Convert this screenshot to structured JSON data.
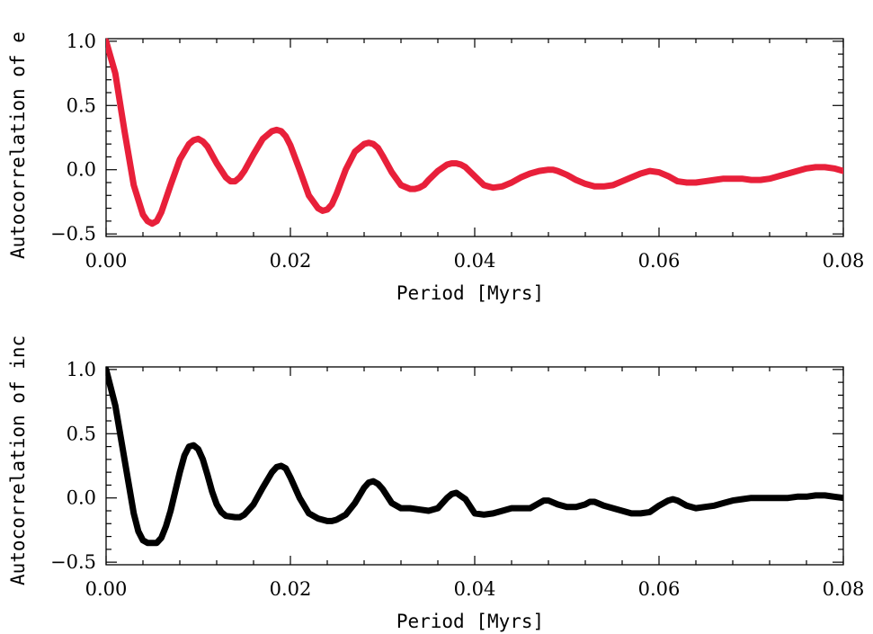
{
  "colors": {
    "series_e": "#e8203a",
    "series_inc": "#000000",
    "axes": "#000000",
    "background": "#ffffff"
  },
  "chart_data": [
    {
      "type": "line",
      "title": "",
      "xlabel": "Period [Myrs]",
      "ylabel": "Autocorrelation of e",
      "xlim": [
        0.0,
        0.08
      ],
      "ylim": [
        -0.52,
        1.02
      ],
      "xticks": [
        0.0,
        0.02,
        0.04,
        0.06,
        0.08
      ],
      "xtick_labels": [
        "0.00",
        "0.02",
        "0.04",
        "0.06",
        "0.08"
      ],
      "yticks": [
        -0.5,
        0.0,
        0.5,
        1.0
      ],
      "ytick_labels": [
        "−0.5",
        "0.0",
        "0.5",
        "1.0"
      ],
      "grid": false,
      "series": [
        {
          "color": "#e8203a",
          "x": [
            0.0,
            0.001,
            0.002,
            0.003,
            0.004,
            0.0045,
            0.005,
            0.0055,
            0.006,
            0.007,
            0.008,
            0.009,
            0.0095,
            0.01,
            0.0105,
            0.011,
            0.012,
            0.013,
            0.0135,
            0.014,
            0.0145,
            0.015,
            0.016,
            0.017,
            0.018,
            0.0185,
            0.019,
            0.0195,
            0.02,
            0.021,
            0.022,
            0.023,
            0.0235,
            0.024,
            0.0245,
            0.025,
            0.026,
            0.027,
            0.028,
            0.0285,
            0.029,
            0.0295,
            0.03,
            0.031,
            0.032,
            0.033,
            0.0335,
            0.034,
            0.0345,
            0.035,
            0.036,
            0.037,
            0.0375,
            0.038,
            0.0385,
            0.039,
            0.04,
            0.041,
            0.042,
            0.043,
            0.044,
            0.045,
            0.046,
            0.047,
            0.048,
            0.0485,
            0.049,
            0.05,
            0.051,
            0.052,
            0.053,
            0.054,
            0.055,
            0.056,
            0.057,
            0.058,
            0.059,
            0.06,
            0.061,
            0.062,
            0.063,
            0.064,
            0.065,
            0.066,
            0.067,
            0.068,
            0.069,
            0.07,
            0.071,
            0.072,
            0.073,
            0.074,
            0.075,
            0.076,
            0.077,
            0.078,
            0.079,
            0.08
          ],
          "y": [
            1.0,
            0.75,
            0.3,
            -0.12,
            -0.35,
            -0.4,
            -0.42,
            -0.4,
            -0.33,
            -0.12,
            0.08,
            0.2,
            0.23,
            0.24,
            0.22,
            0.18,
            0.05,
            -0.06,
            -0.09,
            -0.09,
            -0.06,
            -0.01,
            0.12,
            0.24,
            0.3,
            0.31,
            0.3,
            0.26,
            0.19,
            0.0,
            -0.2,
            -0.3,
            -0.32,
            -0.31,
            -0.27,
            -0.19,
            0.0,
            0.14,
            0.2,
            0.21,
            0.2,
            0.17,
            0.11,
            -0.02,
            -0.12,
            -0.15,
            -0.15,
            -0.14,
            -0.12,
            -0.08,
            -0.01,
            0.04,
            0.05,
            0.05,
            0.04,
            0.02,
            -0.05,
            -0.12,
            -0.14,
            -0.13,
            -0.1,
            -0.06,
            -0.03,
            -0.01,
            0.0,
            0.0,
            -0.01,
            -0.04,
            -0.08,
            -0.11,
            -0.13,
            -0.13,
            -0.12,
            -0.09,
            -0.06,
            -0.03,
            -0.01,
            -0.02,
            -0.05,
            -0.09,
            -0.1,
            -0.1,
            -0.09,
            -0.08,
            -0.07,
            -0.07,
            -0.07,
            -0.08,
            -0.08,
            -0.07,
            -0.05,
            -0.03,
            -0.01,
            0.01,
            0.02,
            0.02,
            0.01,
            -0.01
          ]
        }
      ]
    },
    {
      "type": "line",
      "title": "",
      "xlabel": "Period [Myrs]",
      "ylabel": "Autocorrelation of inc",
      "xlim": [
        0.0,
        0.08
      ],
      "ylim": [
        -0.52,
        1.02
      ],
      "xticks": [
        0.0,
        0.02,
        0.04,
        0.06,
        0.08
      ],
      "xtick_labels": [
        "0.00",
        "0.02",
        "0.04",
        "0.06",
        "0.08"
      ],
      "yticks": [
        -0.5,
        0.0,
        0.5,
        1.0
      ],
      "ytick_labels": [
        "−0.5",
        "0.0",
        "0.5",
        "1.0"
      ],
      "grid": false,
      "series": [
        {
          "color": "#000000",
          "x": [
            0.0,
            0.001,
            0.002,
            0.003,
            0.0035,
            0.004,
            0.0045,
            0.005,
            0.0055,
            0.006,
            0.0065,
            0.007,
            0.0075,
            0.008,
            0.0085,
            0.009,
            0.0095,
            0.01,
            0.0105,
            0.011,
            0.0115,
            0.012,
            0.0125,
            0.013,
            0.014,
            0.0145,
            0.015,
            0.016,
            0.017,
            0.018,
            0.0185,
            0.019,
            0.0195,
            0.02,
            0.021,
            0.022,
            0.023,
            0.024,
            0.0245,
            0.025,
            0.026,
            0.027,
            0.028,
            0.0285,
            0.029,
            0.0295,
            0.03,
            0.031,
            0.032,
            0.033,
            0.034,
            0.035,
            0.036,
            0.037,
            0.0375,
            0.038,
            0.039,
            0.04,
            0.041,
            0.042,
            0.043,
            0.044,
            0.045,
            0.046,
            0.047,
            0.0475,
            0.048,
            0.049,
            0.05,
            0.051,
            0.052,
            0.0525,
            0.053,
            0.054,
            0.055,
            0.056,
            0.057,
            0.058,
            0.059,
            0.06,
            0.061,
            0.0615,
            0.062,
            0.063,
            0.064,
            0.065,
            0.066,
            0.067,
            0.068,
            0.069,
            0.07,
            0.071,
            0.072,
            0.073,
            0.074,
            0.075,
            0.076,
            0.077,
            0.078,
            0.079,
            0.08
          ],
          "y": [
            1.0,
            0.72,
            0.3,
            -0.12,
            -0.26,
            -0.33,
            -0.35,
            -0.35,
            -0.35,
            -0.31,
            -0.22,
            -0.1,
            0.05,
            0.2,
            0.33,
            0.4,
            0.41,
            0.38,
            0.3,
            0.18,
            0.05,
            -0.05,
            -0.11,
            -0.14,
            -0.15,
            -0.15,
            -0.13,
            -0.05,
            0.08,
            0.2,
            0.24,
            0.25,
            0.23,
            0.16,
            0.0,
            -0.12,
            -0.16,
            -0.18,
            -0.18,
            -0.17,
            -0.13,
            -0.04,
            0.08,
            0.12,
            0.13,
            0.11,
            0.07,
            -0.04,
            -0.08,
            -0.08,
            -0.09,
            -0.1,
            -0.08,
            0.0,
            0.03,
            0.04,
            -0.01,
            -0.12,
            -0.13,
            -0.12,
            -0.1,
            -0.08,
            -0.08,
            -0.08,
            -0.04,
            -0.02,
            -0.02,
            -0.05,
            -0.07,
            -0.07,
            -0.05,
            -0.03,
            -0.03,
            -0.06,
            -0.08,
            -0.1,
            -0.12,
            -0.12,
            -0.11,
            -0.06,
            -0.02,
            -0.01,
            -0.02,
            -0.06,
            -0.08,
            -0.07,
            -0.06,
            -0.04,
            -0.02,
            -0.01,
            0.0,
            0.0,
            0.0,
            0.0,
            0.0,
            0.01,
            0.01,
            0.02,
            0.02,
            0.01,
            0.0
          ]
        }
      ]
    }
  ]
}
